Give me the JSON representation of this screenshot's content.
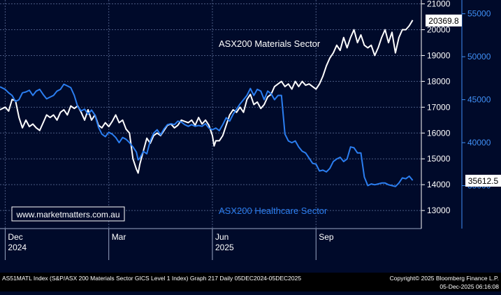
{
  "footer": {
    "left": "AS51MATL Index (S&P/ASX 200 Materials Sector GICS Level 1 Index) Graph 217 Daily 05DEC2024-05DEC2025",
    "right_line1": "Copyright© 2025 Bloomberg Finance L.P.",
    "right_line2": "05-Dec-2025 06:16:08"
  },
  "watermark": "www.marketmatters.com.au",
  "colors": {
    "background": "#000a2a",
    "grid": "#4a5a82",
    "materials": "#ffffff",
    "healthcare": "#2b7ef0",
    "left_axis_text": "#ffffff",
    "right_axis_text": "#3f8ff5"
  },
  "chart_data": {
    "type": "line",
    "x_ticks": [
      {
        "label": "Dec",
        "year": "2024",
        "x": 0
      },
      {
        "label": "Mar",
        "year": "",
        "x": 3
      },
      {
        "label": "Jun",
        "year": "2025",
        "x": 6
      },
      {
        "label": "Sep",
        "year": "",
        "x": 9
      }
    ],
    "xlim": [
      -0.15,
      12.05
    ],
    "left_axis": {
      "ylim": [
        12300,
        21150
      ],
      "ticks": [
        13000,
        14000,
        15000,
        16000,
        17000,
        18000,
        19000,
        20000,
        21000
      ],
      "last_value": "20369.8"
    },
    "right_axis": {
      "ylim": [
        30000,
        56600
      ],
      "ticks": [
        35000,
        40000,
        45000,
        50000,
        55000
      ],
      "last_value": "35612.5"
    },
    "series": [
      {
        "name": "ASX200 Materials Sector",
        "axis": "left",
        "points": [
          [
            -0.15,
            16900
          ],
          [
            0.0,
            17000
          ],
          [
            0.1,
            16850
          ],
          [
            0.2,
            17300
          ],
          [
            0.3,
            17250
          ],
          [
            0.4,
            16600
          ],
          [
            0.5,
            16200
          ],
          [
            0.6,
            16500
          ],
          [
            0.7,
            16250
          ],
          [
            0.8,
            16350
          ],
          [
            0.9,
            16200
          ],
          [
            1.0,
            16100
          ],
          [
            1.1,
            16400
          ],
          [
            1.2,
            16700
          ],
          [
            1.3,
            16600
          ],
          [
            1.4,
            16700
          ],
          [
            1.5,
            16500
          ],
          [
            1.6,
            16800
          ],
          [
            1.7,
            16900
          ],
          [
            1.8,
            16700
          ],
          [
            1.9,
            17050
          ],
          [
            2.0,
            16950
          ],
          [
            2.1,
            17050
          ],
          [
            2.2,
            16800
          ],
          [
            2.3,
            16500
          ],
          [
            2.4,
            16900
          ],
          [
            2.5,
            16500
          ],
          [
            2.6,
            16700
          ],
          [
            2.7,
            16300
          ],
          [
            2.8,
            16200
          ],
          [
            2.9,
            16400
          ],
          [
            3.0,
            16250
          ],
          [
            3.1,
            16450
          ],
          [
            3.2,
            16700
          ],
          [
            3.3,
            16400
          ],
          [
            3.4,
            16500
          ],
          [
            3.5,
            16150
          ],
          [
            3.6,
            16000
          ],
          [
            3.7,
            15000
          ],
          [
            3.8,
            14600
          ],
          [
            3.85,
            14450
          ],
          [
            3.9,
            14800
          ],
          [
            4.0,
            15300
          ],
          [
            4.1,
            15800
          ],
          [
            4.2,
            15600
          ],
          [
            4.3,
            15900
          ],
          [
            4.4,
            16000
          ],
          [
            4.5,
            15900
          ],
          [
            4.6,
            16100
          ],
          [
            4.7,
            16300
          ],
          [
            4.8,
            16350
          ],
          [
            4.9,
            16200
          ],
          [
            5.0,
            16300
          ],
          [
            5.1,
            16500
          ],
          [
            5.2,
            16450
          ],
          [
            5.3,
            16400
          ],
          [
            5.4,
            16500
          ],
          [
            5.5,
            16300
          ],
          [
            5.6,
            16600
          ],
          [
            5.7,
            16350
          ],
          [
            5.8,
            16500
          ],
          [
            5.9,
            16300
          ],
          [
            6.0,
            15900
          ],
          [
            6.05,
            15500
          ],
          [
            6.1,
            15700
          ],
          [
            6.2,
            15700
          ],
          [
            6.3,
            15900
          ],
          [
            6.4,
            16300
          ],
          [
            6.5,
            16700
          ],
          [
            6.6,
            16900
          ],
          [
            6.7,
            16800
          ],
          [
            6.8,
            17000
          ],
          [
            6.9,
            16800
          ],
          [
            7.0,
            17300
          ],
          [
            7.1,
            17500
          ],
          [
            7.2,
            17100
          ],
          [
            7.3,
            17200
          ],
          [
            7.4,
            16950
          ],
          [
            7.5,
            17100
          ],
          [
            7.6,
            17400
          ],
          [
            7.7,
            17500
          ],
          [
            7.8,
            17800
          ],
          [
            7.9,
            17900
          ],
          [
            8.0,
            18000
          ],
          [
            8.1,
            17800
          ],
          [
            8.2,
            17900
          ],
          [
            8.3,
            17700
          ],
          [
            8.4,
            18000
          ],
          [
            8.5,
            17800
          ],
          [
            8.6,
            18000
          ],
          [
            8.7,
            17850
          ],
          [
            8.8,
            17900
          ],
          [
            8.9,
            17800
          ],
          [
            9.0,
            17700
          ],
          [
            9.1,
            17900
          ],
          [
            9.2,
            18200
          ],
          [
            9.3,
            18600
          ],
          [
            9.4,
            18900
          ],
          [
            9.5,
            19100
          ],
          [
            9.6,
            19400
          ],
          [
            9.7,
            19200
          ],
          [
            9.8,
            19700
          ],
          [
            9.9,
            19300
          ],
          [
            10.0,
            19700
          ],
          [
            10.1,
            20000
          ],
          [
            10.2,
            19500
          ],
          [
            10.3,
            19800
          ],
          [
            10.4,
            19400
          ],
          [
            10.5,
            19300
          ],
          [
            10.6,
            19400
          ],
          [
            10.7,
            19000
          ],
          [
            10.8,
            19300
          ],
          [
            10.9,
            19700
          ],
          [
            11.0,
            20000
          ],
          [
            11.1,
            19500
          ],
          [
            11.2,
            19900
          ],
          [
            11.3,
            19100
          ],
          [
            11.4,
            19700
          ],
          [
            11.5,
            20000
          ],
          [
            11.6,
            20000
          ],
          [
            11.7,
            20150
          ],
          [
            11.8,
            20370
          ]
        ]
      },
      {
        "name": "ASX200 Healthcare Sector",
        "axis": "right",
        "points": [
          [
            -0.15,
            46500
          ],
          [
            0.0,
            46200
          ],
          [
            0.1,
            45800
          ],
          [
            0.2,
            45500
          ],
          [
            0.3,
            44800
          ],
          [
            0.4,
            45000
          ],
          [
            0.5,
            45800
          ],
          [
            0.6,
            45900
          ],
          [
            0.7,
            46100
          ],
          [
            0.8,
            45500
          ],
          [
            0.9,
            46000
          ],
          [
            1.0,
            46200
          ],
          [
            1.1,
            45600
          ],
          [
            1.2,
            45100
          ],
          [
            1.3,
            45300
          ],
          [
            1.4,
            45500
          ],
          [
            1.5,
            46000
          ],
          [
            1.6,
            46200
          ],
          [
            1.7,
            46800
          ],
          [
            1.8,
            46600
          ],
          [
            1.9,
            46400
          ],
          [
            2.0,
            45500
          ],
          [
            2.1,
            44200
          ],
          [
            2.2,
            43700
          ],
          [
            2.3,
            43900
          ],
          [
            2.4,
            43300
          ],
          [
            2.5,
            43800
          ],
          [
            2.6,
            43200
          ],
          [
            2.7,
            41800
          ],
          [
            2.8,
            41000
          ],
          [
            2.9,
            40700
          ],
          [
            3.0,
            41200
          ],
          [
            3.1,
            41000
          ],
          [
            3.2,
            40600
          ],
          [
            3.3,
            40000
          ],
          [
            3.4,
            40600
          ],
          [
            3.5,
            40400
          ],
          [
            3.6,
            40000
          ],
          [
            3.7,
            39500
          ],
          [
            3.8,
            38900
          ],
          [
            3.85,
            38000
          ],
          [
            3.9,
            38200
          ],
          [
            4.0,
            39000
          ],
          [
            4.1,
            38700
          ],
          [
            4.2,
            40200
          ],
          [
            4.3,
            41100
          ],
          [
            4.4,
            41500
          ],
          [
            4.5,
            40900
          ],
          [
            4.6,
            41600
          ],
          [
            4.7,
            42100
          ],
          [
            4.8,
            42200
          ],
          [
            4.9,
            42100
          ],
          [
            5.0,
            42500
          ],
          [
            5.1,
            42400
          ],
          [
            5.2,
            42100
          ],
          [
            5.3,
            41900
          ],
          [
            5.4,
            42100
          ],
          [
            5.5,
            41900
          ],
          [
            5.6,
            42000
          ],
          [
            5.7,
            41900
          ],
          [
            5.8,
            42200
          ],
          [
            5.9,
            41700
          ],
          [
            6.0,
            41500
          ],
          [
            6.1,
            41700
          ],
          [
            6.2,
            41400
          ],
          [
            6.3,
            42100
          ],
          [
            6.4,
            42900
          ],
          [
            6.5,
            42500
          ],
          [
            6.6,
            43300
          ],
          [
            6.7,
            43900
          ],
          [
            6.8,
            44500
          ],
          [
            6.9,
            45000
          ],
          [
            7.0,
            45500
          ],
          [
            7.1,
            46300
          ],
          [
            7.2,
            45500
          ],
          [
            7.3,
            46200
          ],
          [
            7.4,
            46000
          ],
          [
            7.5,
            45000
          ],
          [
            7.6,
            46000
          ],
          [
            7.7,
            45700
          ],
          [
            7.8,
            45000
          ],
          [
            7.9,
            45500
          ],
          [
            8.0,
            45500
          ],
          [
            8.1,
            41000
          ],
          [
            8.2,
            40200
          ],
          [
            8.3,
            40000
          ],
          [
            8.4,
            40200
          ],
          [
            8.5,
            39500
          ],
          [
            8.6,
            39000
          ],
          [
            8.7,
            38800
          ],
          [
            8.8,
            38200
          ],
          [
            8.9,
            37600
          ],
          [
            9.0,
            37500
          ],
          [
            9.1,
            36700
          ],
          [
            9.2,
            36800
          ],
          [
            9.3,
            36600
          ],
          [
            9.4,
            37000
          ],
          [
            9.5,
            37800
          ],
          [
            9.6,
            38100
          ],
          [
            9.7,
            38300
          ],
          [
            9.8,
            37800
          ],
          [
            9.9,
            38100
          ],
          [
            10.0,
            39500
          ],
          [
            10.1,
            39400
          ],
          [
            10.2,
            38800
          ],
          [
            10.3,
            38800
          ],
          [
            10.4,
            36000
          ],
          [
            10.5,
            35000
          ],
          [
            10.6,
            35200
          ],
          [
            10.7,
            35100
          ],
          [
            10.8,
            35200
          ],
          [
            10.9,
            35300
          ],
          [
            11.0,
            35300
          ],
          [
            11.1,
            35100
          ],
          [
            11.2,
            35000
          ],
          [
            11.3,
            34900
          ],
          [
            11.4,
            35300
          ],
          [
            11.5,
            35900
          ],
          [
            11.6,
            35800
          ],
          [
            11.7,
            36100
          ],
          [
            11.8,
            35612
          ]
        ]
      }
    ]
  }
}
